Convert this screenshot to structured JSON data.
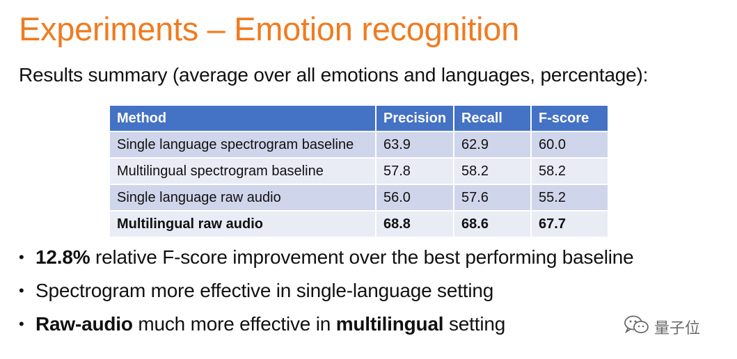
{
  "slide": {
    "title": "Experiments – Emotion recognition",
    "subtitle": "Results summary (average over all emotions and languages, percentage):"
  },
  "table": {
    "headers": [
      "Method",
      "Precision",
      "Recall",
      "F-score"
    ],
    "rows": [
      {
        "method": "Single language spectrogram baseline",
        "precision": "63.9",
        "recall": "62.9",
        "fscore": "60.0"
      },
      {
        "method": "Multilingual spectrogram baseline",
        "precision": "57.8",
        "recall": "58.2",
        "fscore": "58.2"
      },
      {
        "method": "Single language raw audio",
        "precision": "56.0",
        "recall": "57.6",
        "fscore": "55.2"
      },
      {
        "method": "Multilingual raw audio",
        "precision": "68.8",
        "recall": "68.6",
        "fscore": "67.7"
      }
    ]
  },
  "bullets": [
    {
      "bold_prefix": "12.8%",
      "text": " relative F-score improvement over the best performing baseline"
    },
    {
      "text": "Spectrogram more effective in single-language setting"
    },
    {
      "bold_prefix": "Raw-audio",
      "text": " much more effective in ",
      "bold_mid": "multilingual",
      "text_end": " setting"
    }
  ],
  "watermark": {
    "text": "量子位",
    "icon": "wechat-icon"
  },
  "colors": {
    "title": "#f07b20",
    "header": "#4472c4",
    "row_odd": "#cfd5ea",
    "row_even": "#e9ebf5"
  }
}
